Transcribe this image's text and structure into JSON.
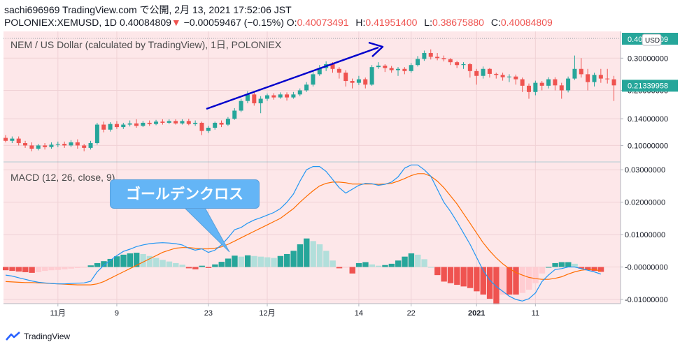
{
  "header": {
    "line1": "sachi696969 TradingView.com で公開, 2月 13, 2021 17:52:06 JST",
    "symbol": "POLONIEX:XEMUSD, 1D",
    "last": "0.40084809",
    "change_arrow": "▼",
    "change": "−0.00059467 (−0.15%)",
    "o_label": "O:",
    "o": "0.40073491",
    "h_label": "H:",
    "h": "0.41951400",
    "l_label": "L:",
    "l": "0.38675880",
    "c_label": "C:",
    "c": "0.40084809"
  },
  "price_pane": {
    "title": "NEM / US Dollar (calculated by TradingView), 1日, POLONIEX",
    "currency_badge": "USD",
    "last_price_label": "0.40084809",
    "current_price_label": "0.21339958"
  },
  "macd_pane": {
    "title": "MACD (12, 26, close, 9)"
  },
  "annotation": {
    "callout_text": "ゴールデンクロス"
  },
  "footer": {
    "brand": "TradingView"
  },
  "colors": {
    "background": "#ffffff",
    "pane_bg": "#fde7e9",
    "up": "#26a69a",
    "down": "#ef5350",
    "macd_line": "#2196f3",
    "signal_line": "#ff6d00",
    "arrow": "#0000cc",
    "callout": "#64b5f6"
  },
  "chart_data": [
    {
      "type": "candlestick",
      "title": "NEM / US Dollar (calculated by TradingView), 1日, POLONIEX",
      "y_scale": "log",
      "ylim": [
        0.082,
        0.42
      ],
      "yticks": [
        "0.30000000",
        "0.20000000",
        "0.14000000",
        "0.10000000"
      ],
      "ytick_values": [
        0.3,
        0.2,
        0.14,
        0.1
      ],
      "xticks": [
        "11月",
        "9",
        "23",
        "12月",
        "14",
        "22",
        "2021",
        "11"
      ],
      "xtick_index": [
        8,
        17,
        31,
        40,
        54,
        62,
        72,
        81
      ],
      "candles": [
        [
          0.11,
          0.106,
          0.114,
          0.104
        ],
        [
          0.106,
          0.109,
          0.112,
          0.103
        ],
        [
          0.109,
          0.103,
          0.112,
          0.1
        ],
        [
          0.103,
          0.1,
          0.106,
          0.097
        ],
        [
          0.1,
          0.096,
          0.104,
          0.093
        ],
        [
          0.096,
          0.1,
          0.102,
          0.094
        ],
        [
          0.1,
          0.098,
          0.103,
          0.095
        ],
        [
          0.098,
          0.101,
          0.104,
          0.096
        ],
        [
          0.101,
          0.102,
          0.105,
          0.098
        ],
        [
          0.102,
          0.1,
          0.105,
          0.097
        ],
        [
          0.1,
          0.104,
          0.107,
          0.098
        ],
        [
          0.104,
          0.1,
          0.108,
          0.096
        ],
        [
          0.1,
          0.097,
          0.102,
          0.093
        ],
        [
          0.097,
          0.103,
          0.106,
          0.095
        ],
        [
          0.103,
          0.13,
          0.133,
          0.101
        ],
        [
          0.13,
          0.122,
          0.135,
          0.118
        ],
        [
          0.122,
          0.131,
          0.134,
          0.119
        ],
        [
          0.131,
          0.126,
          0.136,
          0.123
        ],
        [
          0.126,
          0.13,
          0.133,
          0.123
        ],
        [
          0.13,
          0.132,
          0.137,
          0.127
        ],
        [
          0.132,
          0.128,
          0.139,
          0.125
        ],
        [
          0.128,
          0.133,
          0.136,
          0.126
        ],
        [
          0.133,
          0.131,
          0.137,
          0.128
        ],
        [
          0.131,
          0.135,
          0.138,
          0.129
        ],
        [
          0.135,
          0.133,
          0.139,
          0.13
        ],
        [
          0.133,
          0.136,
          0.139,
          0.131
        ],
        [
          0.136,
          0.132,
          0.139,
          0.13
        ],
        [
          0.132,
          0.136,
          0.139,
          0.13
        ],
        [
          0.136,
          0.131,
          0.14,
          0.129
        ],
        [
          0.131,
          0.133,
          0.137,
          0.128
        ],
        [
          0.133,
          0.12,
          0.135,
          0.114
        ],
        [
          0.12,
          0.125,
          0.128,
          0.117
        ],
        [
          0.125,
          0.133,
          0.135,
          0.122
        ],
        [
          0.133,
          0.13,
          0.137,
          0.126
        ],
        [
          0.13,
          0.14,
          0.143,
          0.128
        ],
        [
          0.14,
          0.155,
          0.16,
          0.138
        ],
        [
          0.155,
          0.175,
          0.18,
          0.152
        ],
        [
          0.175,
          0.19,
          0.198,
          0.17
        ],
        [
          0.19,
          0.17,
          0.195,
          0.165
        ],
        [
          0.17,
          0.18,
          0.186,
          0.15
        ],
        [
          0.18,
          0.188,
          0.192,
          0.175
        ],
        [
          0.188,
          0.183,
          0.193,
          0.178
        ],
        [
          0.183,
          0.19,
          0.195,
          0.18
        ],
        [
          0.19,
          0.183,
          0.195,
          0.176
        ],
        [
          0.183,
          0.19,
          0.196,
          0.18
        ],
        [
          0.19,
          0.2,
          0.205,
          0.186
        ],
        [
          0.2,
          0.215,
          0.222,
          0.196
        ],
        [
          0.215,
          0.245,
          0.255,
          0.21
        ],
        [
          0.245,
          0.265,
          0.275,
          0.24
        ],
        [
          0.265,
          0.278,
          0.288,
          0.255
        ],
        [
          0.278,
          0.262,
          0.285,
          0.25
        ],
        [
          0.262,
          0.25,
          0.268,
          0.232
        ],
        [
          0.25,
          0.225,
          0.258,
          0.21
        ],
        [
          0.225,
          0.22,
          0.232,
          0.205
        ],
        [
          0.22,
          0.23,
          0.24,
          0.214
        ],
        [
          0.23,
          0.215,
          0.235,
          0.205
        ],
        [
          0.215,
          0.268,
          0.275,
          0.212
        ],
        [
          0.268,
          0.273,
          0.285,
          0.262
        ],
        [
          0.273,
          0.265,
          0.278,
          0.252
        ],
        [
          0.265,
          0.258,
          0.272,
          0.25
        ],
        [
          0.258,
          0.262,
          0.268,
          0.24
        ],
        [
          0.262,
          0.255,
          0.268,
          0.245
        ],
        [
          0.255,
          0.275,
          0.282,
          0.25
        ],
        [
          0.275,
          0.297,
          0.308,
          0.27
        ],
        [
          0.297,
          0.32,
          0.33,
          0.29
        ],
        [
          0.32,
          0.305,
          0.335,
          0.295
        ],
        [
          0.305,
          0.3,
          0.32,
          0.292
        ],
        [
          0.3,
          0.296,
          0.31,
          0.288
        ],
        [
          0.296,
          0.285,
          0.3,
          0.275
        ],
        [
          0.285,
          0.275,
          0.29,
          0.265
        ],
        [
          0.275,
          0.278,
          0.285,
          0.262
        ],
        [
          0.278,
          0.255,
          0.282,
          0.235
        ],
        [
          0.255,
          0.24,
          0.262,
          0.215
        ],
        [
          0.24,
          0.262,
          0.27,
          0.232
        ],
        [
          0.262,
          0.246,
          0.265,
          0.235
        ],
        [
          0.246,
          0.243,
          0.25,
          0.232
        ],
        [
          0.243,
          0.236,
          0.25,
          0.226
        ],
        [
          0.236,
          0.238,
          0.245,
          0.222
        ],
        [
          0.238,
          0.23,
          0.244,
          0.215
        ],
        [
          0.23,
          0.212,
          0.235,
          0.196
        ],
        [
          0.212,
          0.196,
          0.218,
          0.18
        ],
        [
          0.196,
          0.22,
          0.226,
          0.188
        ],
        [
          0.22,
          0.212,
          0.225,
          0.2
        ],
        [
          0.212,
          0.23,
          0.236,
          0.205
        ],
        [
          0.23,
          0.213,
          0.236,
          0.2
        ],
        [
          0.213,
          0.2,
          0.22,
          0.18
        ],
        [
          0.2,
          0.232,
          0.238,
          0.195
        ],
        [
          0.232,
          0.262,
          0.31,
          0.228
        ],
        [
          0.262,
          0.245,
          0.3,
          0.235
        ],
        [
          0.245,
          0.222,
          0.262,
          0.2
        ],
        [
          0.222,
          0.243,
          0.25,
          0.21
        ],
        [
          0.243,
          0.232,
          0.262,
          0.22
        ],
        [
          0.232,
          0.23,
          0.262,
          0.218
        ],
        [
          0.23,
          0.213,
          0.24,
          0.175
        ]
      ]
    },
    {
      "type": "line",
      "title": "MACD (12, 26, close, 9)",
      "ylim": [
        -0.0113,
        0.0322
      ],
      "yticks": [
        "0.03000000",
        "0.02000000",
        "0.01000000",
        "-0.00000000",
        "-0.01000000"
      ],
      "ytick_values": [
        0.03,
        0.02,
        0.01,
        0.0,
        -0.01
      ],
      "annotation": "ゴールデンクロス",
      "series": [
        {
          "name": "MACD",
          "color": "#2196f3",
          "values": [
            -0.0025,
            -0.0028,
            -0.0033,
            -0.0038,
            -0.0043,
            -0.0047,
            -0.0049,
            -0.0051,
            -0.0052,
            -0.0052,
            -0.0051,
            -0.005,
            -0.0049,
            -0.0044,
            -0.0015,
            0.0005,
            0.002,
            0.0035,
            0.0048,
            0.0055,
            0.0063,
            0.0068,
            0.0072,
            0.0074,
            0.0075,
            0.0074,
            0.0072,
            0.0068,
            0.0058,
            0.0052,
            0.0056,
            0.0045,
            0.0052,
            0.0068,
            0.009,
            0.0115,
            0.0122,
            0.0135,
            0.0145,
            0.0152,
            0.016,
            0.0168,
            0.018,
            0.02,
            0.0225,
            0.0265,
            0.03,
            0.031,
            0.031,
            0.0295,
            0.027,
            0.0245,
            0.0228,
            0.024,
            0.0252,
            0.0258,
            0.0257,
            0.0252,
            0.0255,
            0.0262,
            0.0278,
            0.0305,
            0.0315,
            0.0315,
            0.03,
            0.028,
            0.024,
            0.02,
            0.0172,
            0.014,
            0.0105,
            0.007,
            0.003,
            -0.001,
            -0.004,
            -0.006,
            -0.0075,
            -0.009,
            -0.01,
            -0.0105,
            -0.0098,
            -0.008,
            -0.0045,
            -0.0025,
            -0.0008,
            -0.0005,
            -0.0,
            0.0,
            -0.0005,
            -0.001,
            -0.0015,
            -0.0022
          ]
        },
        {
          "name": "Signal",
          "color": "#ff6d00",
          "values": [
            -0.0045,
            -0.0046,
            -0.0047,
            -0.0048,
            -0.0048,
            -0.0049,
            -0.005,
            -0.0051,
            -0.0052,
            -0.0053,
            -0.0054,
            -0.0055,
            -0.0055,
            -0.0055,
            -0.0052,
            -0.0045,
            -0.0035,
            -0.0025,
            -0.0015,
            -0.0005,
            0.0005,
            0.0015,
            0.0025,
            0.0035,
            0.0045,
            0.0052,
            0.0058,
            0.006,
            0.006,
            0.0058,
            0.0056,
            0.0056,
            0.0058,
            0.0062,
            0.007,
            0.008,
            0.009,
            0.01,
            0.011,
            0.012,
            0.013,
            0.014,
            0.015,
            0.0165,
            0.018,
            0.02,
            0.0218,
            0.0235,
            0.025,
            0.0258,
            0.0262,
            0.0262,
            0.026,
            0.0256,
            0.0256,
            0.0256,
            0.0256,
            0.0255,
            0.0256,
            0.0258,
            0.0265,
            0.0273,
            0.0282,
            0.0288,
            0.0288,
            0.028,
            0.0265,
            0.0245,
            0.022,
            0.0195,
            0.0165,
            0.0135,
            0.0105,
            0.0075,
            0.005,
            0.0028,
            0.001,
            -0.0005,
            -0.0017,
            -0.0025,
            -0.0032,
            -0.0036,
            -0.0038,
            -0.0038,
            -0.0035,
            -0.003,
            -0.0022,
            -0.0015,
            -0.001,
            -0.0008,
            -0.0008,
            -0.0012
          ]
        },
        {
          "name": "Histogram",
          "color": "#26a69a",
          "values": [
            -0.001,
            -0.0012,
            -0.0014,
            -0.0016,
            -0.0018,
            -0.0016,
            -0.0012,
            -0.001,
            -0.0009,
            -0.0007,
            -0.0005,
            -0.0003,
            -0.0001,
            0.0005,
            0.0012,
            0.0018,
            0.0025,
            0.0033,
            0.0038,
            0.0042,
            0.0044,
            0.004,
            0.0034,
            0.0028,
            0.0022,
            0.0017,
            0.0012,
            0.0007,
            -0.0004,
            -0.0007,
            0.0004,
            -0.0003,
            0.0008,
            0.0016,
            0.0026,
            0.0035,
            0.0032,
            0.0036,
            0.0034,
            0.0032,
            0.003,
            0.0028,
            0.0034,
            0.004,
            0.005,
            0.007,
            0.0088,
            0.008,
            0.007,
            0.005,
            0.002,
            -0.0004,
            -0.0002,
            -0.002,
            0.0012,
            0.0015,
            0.0008,
            0.0004,
            0.0006,
            0.001,
            0.002,
            0.0032,
            0.0042,
            0.0038,
            0.0024,
            0.0,
            -0.0025,
            -0.0045,
            -0.005,
            -0.0055,
            -0.006,
            -0.0065,
            -0.0075,
            -0.0085,
            -0.0098,
            -0.0115,
            -0.0085,
            -0.0085,
            -0.0085,
            -0.008,
            -0.007,
            -0.005,
            -0.002,
            0.0,
            0.0012,
            0.0015,
            0.0015,
            0.001,
            -0.0005,
            -0.001,
            -0.0012,
            -0.0015
          ]
        }
      ]
    }
  ]
}
